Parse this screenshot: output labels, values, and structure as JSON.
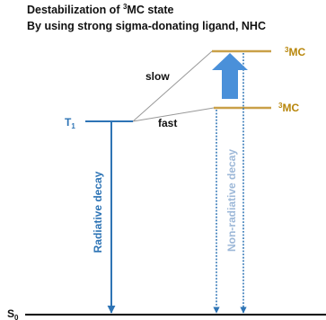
{
  "title": {
    "line1_prefix": "Destabilization of ",
    "line1_sup": "3",
    "line1_suffix": "MC state",
    "line2": "By using strong sigma-donating ligand, NHC"
  },
  "levels": {
    "t1": {
      "base": "T",
      "sub": "1"
    },
    "s0": {
      "base": "S",
      "sub": "0"
    },
    "mc_high": {
      "sup": "3",
      "base": "MC"
    },
    "mc_low": {
      "sup": "3",
      "base": "MC"
    }
  },
  "labels": {
    "slow": "slow",
    "fast": "fast",
    "radiative": "Radiative decay",
    "non_radiative": "Non-radiative decay"
  },
  "colors": {
    "blue": "#2e74b5",
    "light_blue": "#4a90d9",
    "gold": "#c9a048",
    "gold_text": "#b8860b",
    "gray_line": "#999999",
    "nonrad_text": "#9db8d8",
    "black": "#000000"
  },
  "icons": {
    "up_arrow": "block-arrow-up-icon"
  }
}
